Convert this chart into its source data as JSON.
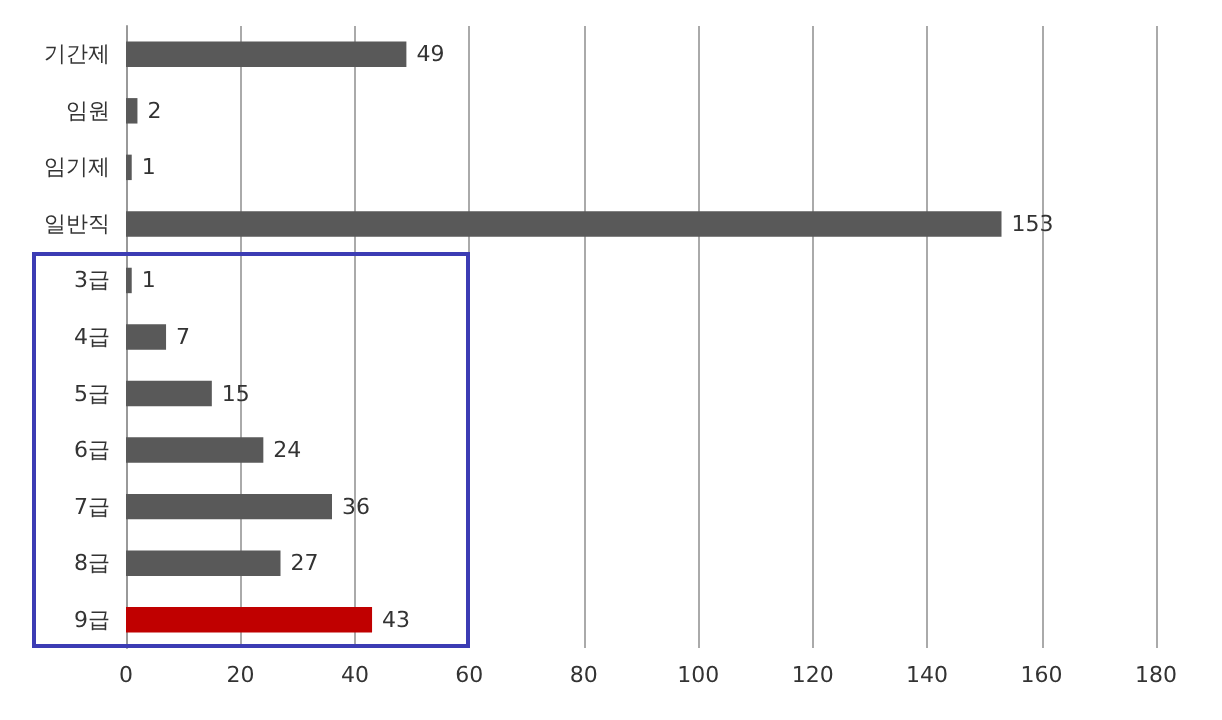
{
  "chart_data": {
    "type": "bar",
    "orientation": "horizontal",
    "categories": [
      "기간제",
      "임원",
      "임기제",
      "일반직",
      "3급",
      "4급",
      "5급",
      "6급",
      "7급",
      "8급",
      "9급"
    ],
    "values": [
      49,
      2,
      1,
      153,
      1,
      7,
      15,
      24,
      36,
      27,
      43
    ],
    "colors": [
      "#595959",
      "#595959",
      "#595959",
      "#595959",
      "#595959",
      "#595959",
      "#595959",
      "#595959",
      "#595959",
      "#595959",
      "#c00000"
    ],
    "xlim": [
      0,
      180
    ],
    "xticks": [
      0,
      20,
      40,
      60,
      80,
      100,
      120,
      140,
      160,
      180
    ],
    "grid": "x",
    "data_labels": true
  }
}
